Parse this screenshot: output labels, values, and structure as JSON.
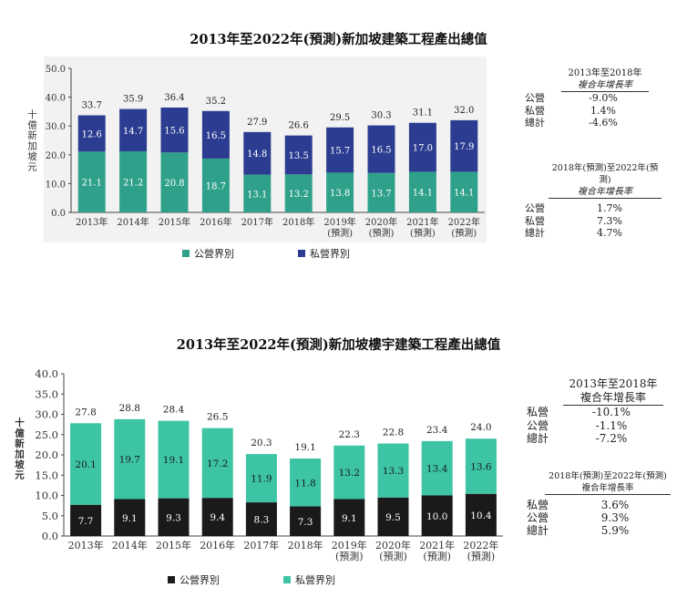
{
  "charts": [
    {
      "title": "2013年至2022年(預測)新加坡建築工程產出總值",
      "ylabel": "十億新加坡元",
      "legend": [
        "公營界別",
        "私營界別"
      ],
      "colors": {
        "public": "#2fa18a",
        "private": "#2c3d91"
      },
      "cagr": {
        "period1": {
          "header1": "2013年至2018年",
          "header2": "複合年增長率",
          "rows": [
            {
              "k": "公營",
              "v": "-9.0%"
            },
            {
              "k": "私營",
              "v": "1.4%"
            },
            {
              "k": "總計",
              "v": "-4.6%"
            }
          ]
        },
        "period2": {
          "header1": "2018年(預測)至2022年(預測)",
          "header2": "複合年增長率",
          "rows": [
            {
              "k": "公營",
              "v": "1.7%"
            },
            {
              "k": "私營",
              "v": "7.3%"
            },
            {
              "k": "總計",
              "v": "4.7%"
            }
          ]
        }
      }
    },
    {
      "title": "2013年至2022年(預測)新加坡樓宇建築工程產出總值",
      "ylabel": "十億新加坡元",
      "legend": [
        "公營界別",
        "私營界別"
      ],
      "colors": {
        "public": "#1a1a1a",
        "private": "#3cc4a4"
      },
      "cagr": {
        "period1": {
          "header1": "2013年至2018年",
          "header2": "複合年增長率",
          "rows": [
            {
              "k": "私營",
              "v": "-10.1%"
            },
            {
              "k": "公營",
              "v": "-1.1%"
            },
            {
              "k": "總計",
              "v": "-7.2%"
            }
          ]
        },
        "period2": {
          "header1": "2018年(預測)至2022年(預測)",
          "header2": "複合年增長率",
          "rows": [
            {
              "k": "私營",
              "v": "3.6%"
            },
            {
              "k": "公營",
              "v": "9.3%"
            },
            {
              "k": "總計",
              "v": "5.9%"
            }
          ]
        }
      }
    }
  ],
  "chart_data": [
    {
      "type": "bar",
      "stacked": true,
      "title": "2013年至2022年(預測)新加坡建築工程產出總值",
      "ylabel": "十億新加坡元",
      "xlabel": "",
      "ylim": [
        0,
        50
      ],
      "yticks": [
        "0.0",
        "10.0",
        "20.0",
        "30.0",
        "40.0",
        "50.0"
      ],
      "categories": [
        "2013年",
        "2014年",
        "2015年",
        "2016年",
        "2017年",
        "2018年",
        "2019年(預測)",
        "2020年(預測)",
        "2021年(預測)",
        "2022年(預測)"
      ],
      "series": [
        {
          "name": "公營界別",
          "values": [
            21.1,
            21.2,
            20.8,
            18.7,
            13.1,
            13.2,
            13.8,
            13.7,
            14.1,
            14.1
          ]
        },
        {
          "name": "私營界別",
          "values": [
            12.6,
            14.7,
            15.6,
            16.5,
            14.8,
            13.5,
            15.7,
            16.5,
            17.0,
            17.9
          ]
        }
      ],
      "totals": [
        "33.7",
        "35.9",
        "36.4",
        "35.2",
        "27.9",
        "26.6",
        "29.5",
        "30.3",
        "31.1",
        "32.0"
      ],
      "grid": false,
      "legend_position": "bottom"
    },
    {
      "type": "bar",
      "stacked": true,
      "title": "2013年至2022年(預測)新加坡樓宇建築工程產出總值",
      "ylabel": "十億新加坡元",
      "xlabel": "",
      "ylim": [
        0,
        40
      ],
      "yticks": [
        "0.0",
        "5.0",
        "10.0",
        "15.0",
        "20.0",
        "25.0",
        "30.0",
        "35.0",
        "40.0"
      ],
      "categories": [
        "2013年",
        "2014年",
        "2015年",
        "2016年",
        "2017年",
        "2018年",
        "2019年(預測)",
        "2020年(預測)",
        "2021年(預測)",
        "2022年(預測)"
      ],
      "series": [
        {
          "name": "公營界別",
          "values": [
            7.7,
            9.1,
            9.3,
            9.4,
            8.3,
            7.3,
            9.1,
            9.5,
            10.0,
            10.4
          ]
        },
        {
          "name": "私營界別",
          "values": [
            20.1,
            19.7,
            19.1,
            17.2,
            11.9,
            11.8,
            13.2,
            13.3,
            13.4,
            13.6
          ]
        }
      ],
      "totals": [
        "27.8",
        "28.8",
        "28.4",
        "26.5",
        "20.3",
        "19.1",
        "22.3",
        "22.8",
        "23.4",
        "24.0"
      ],
      "grid": false,
      "legend_position": "bottom"
    }
  ]
}
